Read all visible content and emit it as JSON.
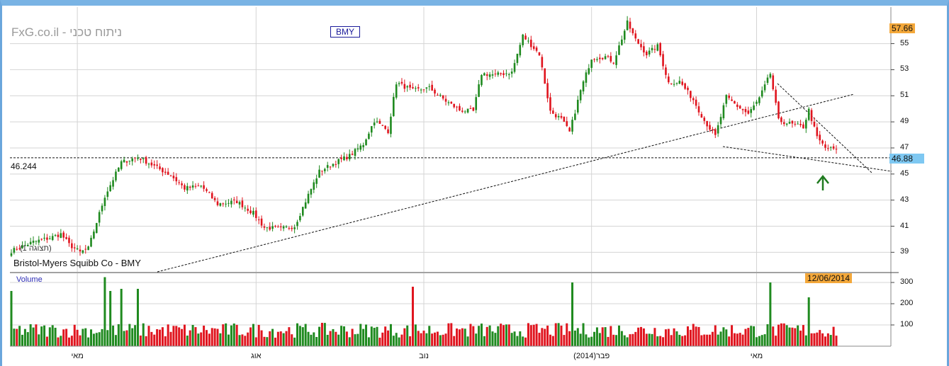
{
  "header": {
    "watermark": "FxG.co.il - ניתוח טכני",
    "ticker": "BMY",
    "company": "Bristol-Myers Squibb Co - BMY",
    "history_note": "(תצוגה 1)",
    "volume_title": "Volume",
    "support_value": "46.244",
    "high_label": "57.66",
    "last_label": "46.88",
    "date_label": "12/06/2014"
  },
  "colors": {
    "up": "#1f8a1f",
    "down": "#e0141e",
    "grid": "#d4d4d4",
    "frame": "#79b3e4",
    "arrow": "#1f7a1f",
    "high_box": "#f4a83a",
    "last_box": "#7ec8f2"
  },
  "icons": {
    "support_arrow": "up-arrow-icon"
  },
  "chart_data": [
    {
      "type": "candlestick",
      "title": "Bristol-Myers Squibb Co - BMY",
      "ylim": [
        37.5,
        57.8
      ],
      "y_ticks": [
        "39",
        "41",
        "43",
        "45",
        "47",
        "49",
        "51",
        "53",
        "55"
      ],
      "x_labels": [
        "מאי",
        "אוג",
        "נוב",
        "פבר(2014)",
        "מאי"
      ],
      "grid": true,
      "anchor_closes": [
        [
          0,
          39.1
        ],
        [
          8,
          39.8
        ],
        [
          14,
          40.1
        ],
        [
          18,
          40.4
        ],
        [
          21,
          39.6
        ],
        [
          25,
          39.0
        ],
        [
          28,
          39.3
        ],
        [
          34,
          43.3
        ],
        [
          40,
          45.9
        ],
        [
          46,
          46.3
        ],
        [
          52,
          45.6
        ],
        [
          58,
          44.9
        ],
        [
          63,
          43.9
        ],
        [
          69,
          44.1
        ],
        [
          75,
          42.7
        ],
        [
          82,
          42.9
        ],
        [
          88,
          42.0
        ],
        [
          92,
          40.9
        ],
        [
          98,
          40.8
        ],
        [
          103,
          41.0
        ],
        [
          108,
          43.4
        ],
        [
          112,
          45.2
        ],
        [
          118,
          45.9
        ],
        [
          123,
          46.4
        ],
        [
          128,
          47.3
        ],
        [
          132,
          49.1
        ],
        [
          137,
          48.3
        ],
        [
          140,
          52.0
        ],
        [
          146,
          51.4
        ],
        [
          152,
          51.6
        ],
        [
          158,
          50.6
        ],
        [
          163,
          49.9
        ],
        [
          168,
          49.8
        ],
        [
          171,
          52.7
        ],
        [
          176,
          52.6
        ],
        [
          182,
          52.8
        ],
        [
          186,
          55.6
        ],
        [
          192,
          54.2
        ],
        [
          196,
          49.8
        ],
        [
          200,
          49.2
        ],
        [
          203,
          48.2
        ],
        [
          207,
          51.4
        ],
        [
          211,
          53.9
        ],
        [
          216,
          54.0
        ],
        [
          219,
          53.6
        ],
        [
          224,
          56.6
        ],
        [
          227,
          55.3
        ],
        [
          231,
          54.2
        ],
        [
          235,
          54.8
        ],
        [
          239,
          52.0
        ],
        [
          243,
          52.1
        ],
        [
          248,
          50.7
        ],
        [
          252,
          49.1
        ],
        [
          256,
          47.9
        ],
        [
          260,
          50.9
        ],
        [
          264,
          50.2
        ],
        [
          268,
          49.6
        ],
        [
          272,
          50.8
        ],
        [
          276,
          52.7
        ],
        [
          279,
          49.1
        ],
        [
          284,
          48.8
        ],
        [
          288,
          48.6
        ],
        [
          290,
          49.9
        ],
        [
          293,
          47.8
        ],
        [
          296,
          47.0
        ],
        [
          300,
          46.9
        ]
      ],
      "support_level": 46.244,
      "last": 46.88,
      "period_high": 57.66,
      "last_date": "12/06/2014"
    },
    {
      "type": "bar",
      "title": "Volume",
      "ylim": [
        0,
        330
      ],
      "y_ticks": [
        "100",
        "200",
        "300"
      ],
      "spikes": [
        [
          0,
          260
        ],
        [
          34,
          325
        ],
        [
          36,
          260
        ],
        [
          40,
          270
        ],
        [
          46,
          270
        ],
        [
          146,
          280
        ],
        [
          204,
          300
        ],
        [
          276,
          300
        ],
        [
          290,
          230
        ]
      ],
      "baseline": [
        40,
        110
      ]
    }
  ]
}
